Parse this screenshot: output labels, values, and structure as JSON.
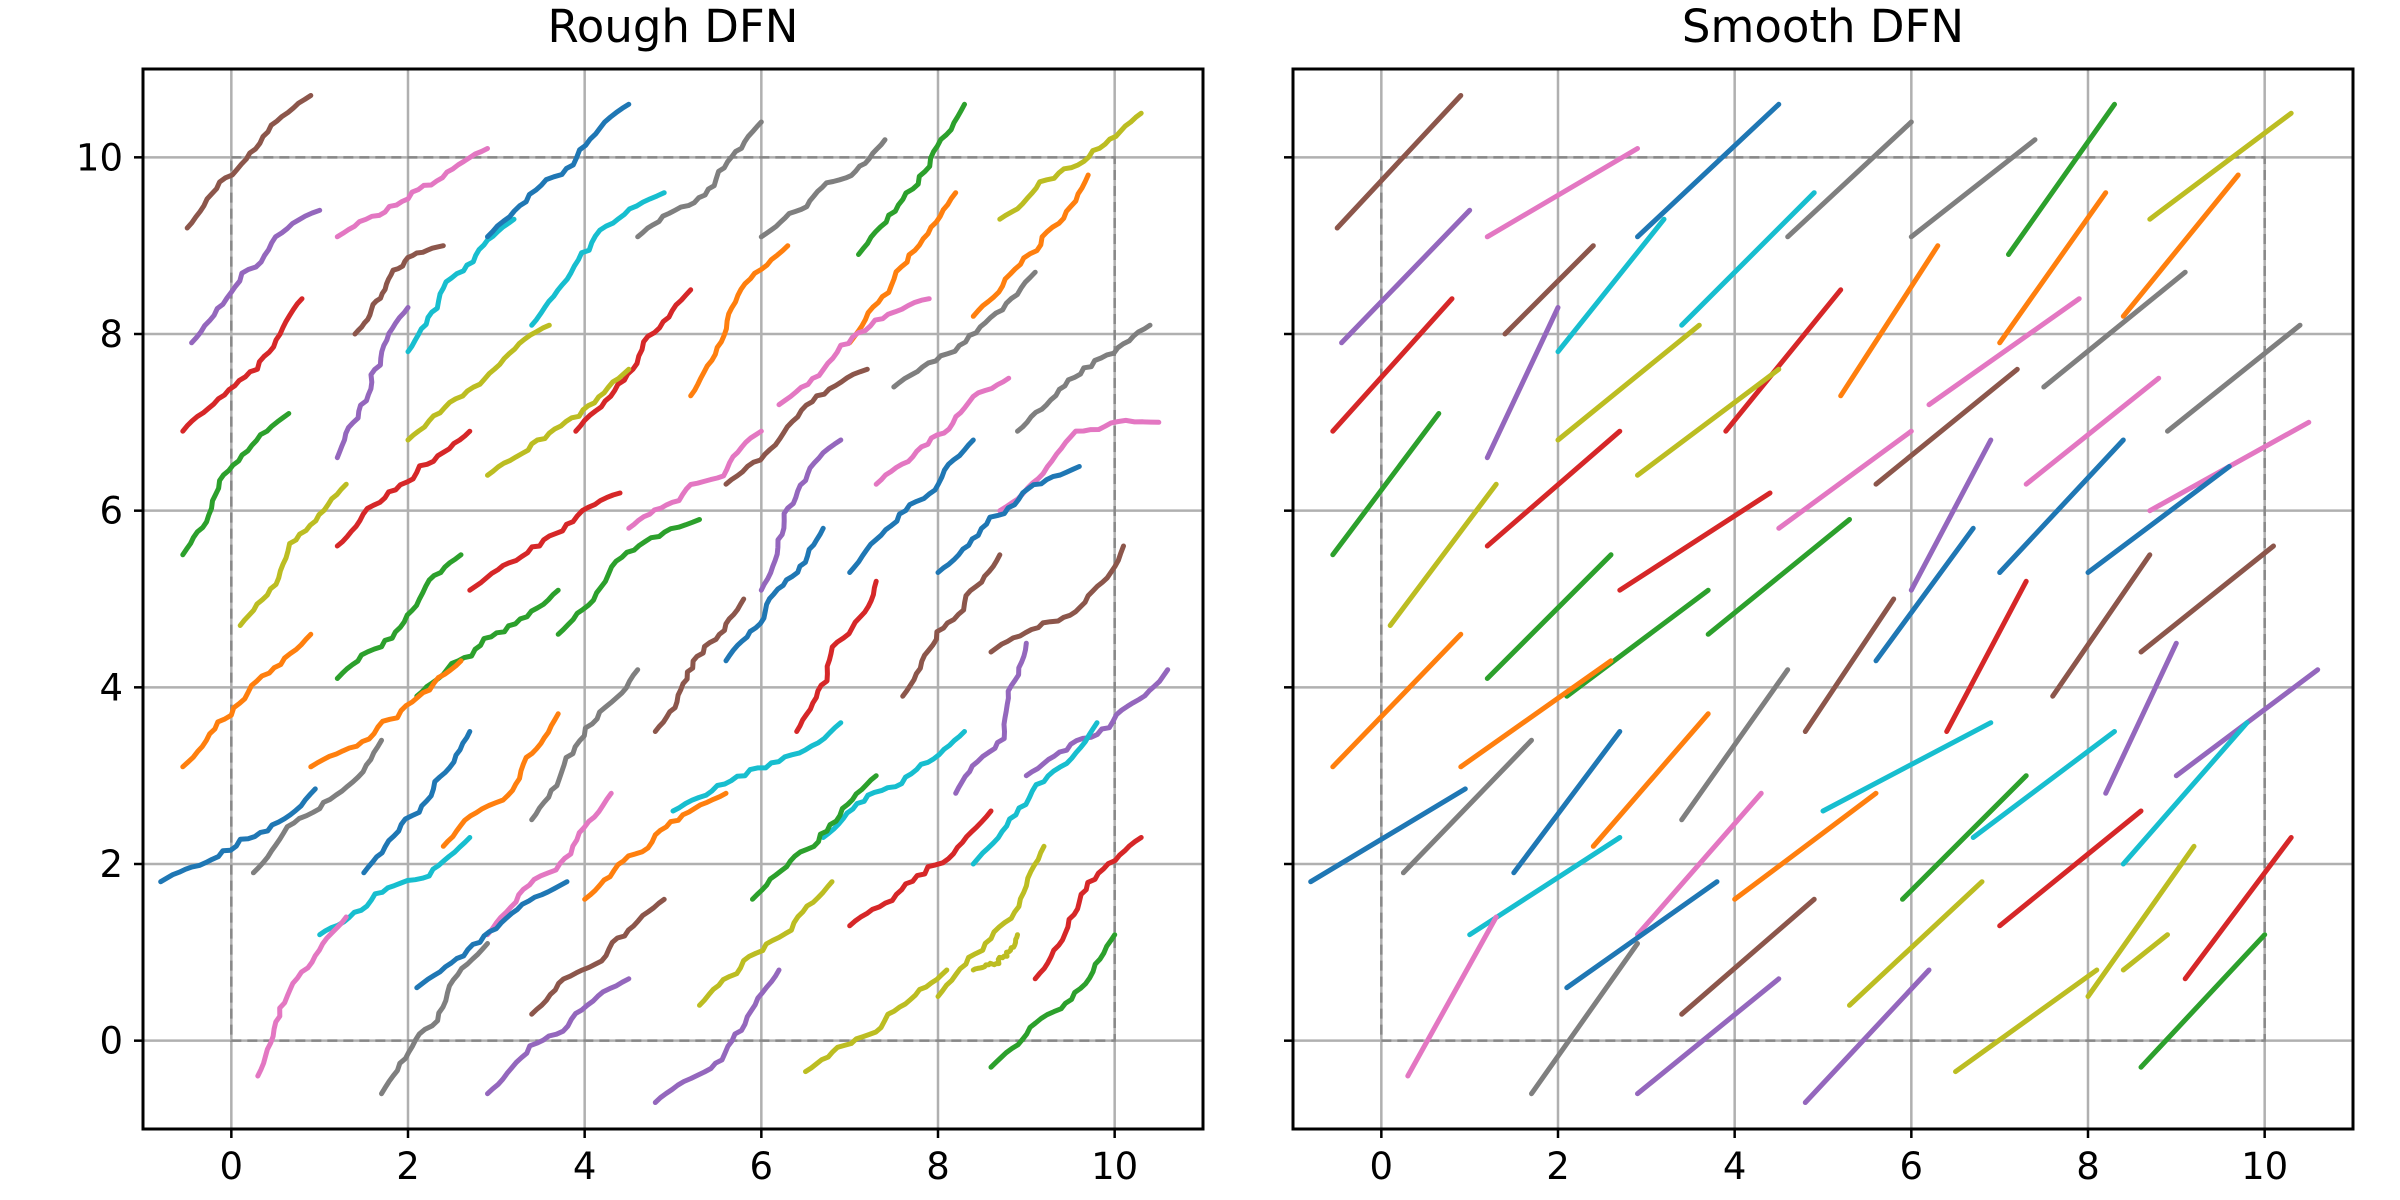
{
  "chart_data": [
    {
      "type": "line",
      "title": "Rough DFN",
      "xlabel": "",
      "ylabel": "",
      "xlim": [
        -1,
        11
      ],
      "ylim": [
        -1,
        11
      ],
      "xticks": [
        0,
        2,
        4,
        6,
        8,
        10
      ],
      "yticks": [
        0,
        2,
        4,
        6,
        8,
        10
      ],
      "grid": true,
      "domain_box": [
        0,
        0,
        10,
        10
      ],
      "roughness": "rough"
    },
    {
      "type": "line",
      "title": "Smooth DFN",
      "xlabel": "",
      "ylabel": "",
      "xlim": [
        -1,
        11
      ],
      "ylim": [
        -1,
        11
      ],
      "xticks": [
        0,
        2,
        4,
        6,
        8,
        10
      ],
      "yticks": [],
      "grid": true,
      "domain_box": [
        0,
        0,
        10,
        10
      ],
      "roughness": "smooth"
    }
  ],
  "fractures": [
    {
      "x1": -0.5,
      "y1": 9.2,
      "x2": 0.9,
      "y2": 10.7,
      "color": "#8c564b"
    },
    {
      "x1": -0.45,
      "y1": 7.9,
      "x2": 1.0,
      "y2": 9.4,
      "color": "#9467bd"
    },
    {
      "x1": 1.2,
      "y1": 9.1,
      "x2": 2.9,
      "y2": 10.1,
      "color": "#e377c2"
    },
    {
      "x1": 1.4,
      "y1": 8.0,
      "x2": 2.4,
      "y2": 9.0,
      "color": "#8c564b"
    },
    {
      "x1": -0.55,
      "y1": 6.9,
      "x2": 0.8,
      "y2": 8.4,
      "color": "#d62728"
    },
    {
      "x1": 2.0,
      "y1": 7.8,
      "x2": 3.2,
      "y2": 9.3,
      "color": "#17becf"
    },
    {
      "x1": 2.9,
      "y1": 9.1,
      "x2": 4.5,
      "y2": 10.6,
      "color": "#1f77b4"
    },
    {
      "x1": 1.2,
      "y1": 6.6,
      "x2": 2.0,
      "y2": 8.3,
      "color": "#9467bd"
    },
    {
      "x1": -0.55,
      "y1": 5.5,
      "x2": 0.65,
      "y2": 7.1,
      "color": "#2ca02c"
    },
    {
      "x1": 2.0,
      "y1": 6.8,
      "x2": 3.6,
      "y2": 8.1,
      "color": "#bcbd22"
    },
    {
      "x1": 3.4,
      "y1": 8.1,
      "x2": 4.9,
      "y2": 9.6,
      "color": "#17becf"
    },
    {
      "x1": 4.6,
      "y1": 9.1,
      "x2": 6.0,
      "y2": 10.4,
      "color": "#7f7f7f"
    },
    {
      "x1": 6.0,
      "y1": 9.1,
      "x2": 7.4,
      "y2": 10.2,
      "color": "#7f7f7f"
    },
    {
      "x1": 7.1,
      "y1": 8.9,
      "x2": 8.3,
      "y2": 10.6,
      "color": "#2ca02c"
    },
    {
      "x1": 8.7,
      "y1": 9.3,
      "x2": 10.3,
      "y2": 10.5,
      "color": "#bcbd22"
    },
    {
      "x1": 5.2,
      "y1": 7.3,
      "x2": 6.3,
      "y2": 9.0,
      "color": "#ff7f0e"
    },
    {
      "x1": 3.9,
      "y1": 6.9,
      "x2": 5.2,
      "y2": 8.5,
      "color": "#d62728"
    },
    {
      "x1": 7.0,
      "y1": 7.9,
      "x2": 8.2,
      "y2": 9.6,
      "color": "#ff7f0e"
    },
    {
      "x1": 8.4,
      "y1": 8.2,
      "x2": 9.7,
      "y2": 9.8,
      "color": "#ff7f0e"
    },
    {
      "x1": 0.1,
      "y1": 4.7,
      "x2": 1.3,
      "y2": 6.3,
      "color": "#bcbd22"
    },
    {
      "x1": 1.2,
      "y1": 5.6,
      "x2": 2.7,
      "y2": 6.9,
      "color": "#d62728"
    },
    {
      "x1": 2.9,
      "y1": 6.4,
      "x2": 4.5,
      "y2": 7.6,
      "color": "#bcbd22"
    },
    {
      "x1": 6.2,
      "y1": 7.2,
      "x2": 7.9,
      "y2": 8.4,
      "color": "#e377c2"
    },
    {
      "x1": 7.5,
      "y1": 7.4,
      "x2": 9.1,
      "y2": 8.7,
      "color": "#7f7f7f"
    },
    {
      "x1": 5.6,
      "y1": 6.3,
      "x2": 7.2,
      "y2": 7.6,
      "color": "#8c564b"
    },
    {
      "x1": 8.9,
      "y1": 6.9,
      "x2": 10.4,
      "y2": 8.1,
      "color": "#7f7f7f"
    },
    {
      "x1": 4.5,
      "y1": 5.8,
      "x2": 6.0,
      "y2": 6.9,
      "color": "#e377c2"
    },
    {
      "x1": 2.7,
      "y1": 5.1,
      "x2": 4.4,
      "y2": 6.2,
      "color": "#d62728"
    },
    {
      "x1": 1.2,
      "y1": 4.1,
      "x2": 2.6,
      "y2": 5.5,
      "color": "#2ca02c"
    },
    {
      "x1": 6.0,
      "y1": 5.1,
      "x2": 6.9,
      "y2": 6.8,
      "color": "#9467bd"
    },
    {
      "x1": 7.3,
      "y1": 6.3,
      "x2": 8.8,
      "y2": 7.5,
      "color": "#e377c2"
    },
    {
      "x1": 8.7,
      "y1": 6.0,
      "x2": 10.5,
      "y2": 7.0,
      "color": "#e377c2"
    },
    {
      "x1": 7.0,
      "y1": 5.3,
      "x2": 8.4,
      "y2": 6.8,
      "color": "#1f77b4"
    },
    {
      "x1": 5.6,
      "y1": 4.3,
      "x2": 6.7,
      "y2": 5.8,
      "color": "#1f77b4"
    },
    {
      "x1": 8.0,
      "y1": 5.3,
      "x2": 9.6,
      "y2": 6.5,
      "color": "#1f77b4"
    },
    {
      "x1": 2.1,
      "y1": 3.9,
      "x2": 3.7,
      "y2": 5.1,
      "color": "#2ca02c"
    },
    {
      "x1": 3.7,
      "y1": 4.6,
      "x2": 5.3,
      "y2": 5.9,
      "color": "#2ca02c"
    },
    {
      "x1": -0.55,
      "y1": 3.1,
      "x2": 0.9,
      "y2": 4.6,
      "color": "#ff7f0e"
    },
    {
      "x1": 0.9,
      "y1": 3.1,
      "x2": 2.6,
      "y2": 4.3,
      "color": "#ff7f0e"
    },
    {
      "x1": 4.8,
      "y1": 3.5,
      "x2": 5.8,
      "y2": 5.0,
      "color": "#8c564b"
    },
    {
      "x1": 6.4,
      "y1": 3.5,
      "x2": 7.3,
      "y2": 5.2,
      "color": "#d62728"
    },
    {
      "x1": 7.6,
      "y1": 3.9,
      "x2": 8.7,
      "y2": 5.5,
      "color": "#8c564b"
    },
    {
      "x1": 8.6,
      "y1": 4.4,
      "x2": 10.1,
      "y2": 5.6,
      "color": "#8c564b"
    },
    {
      "x1": 8.2,
      "y1": 2.8,
      "x2": 9.0,
      "y2": 4.5,
      "color": "#9467bd"
    },
    {
      "x1": 9.0,
      "y1": 3.0,
      "x2": 10.6,
      "y2": 4.2,
      "color": "#9467bd"
    },
    {
      "x1": 3.4,
      "y1": 2.5,
      "x2": 4.6,
      "y2": 4.2,
      "color": "#7f7f7f"
    },
    {
      "x1": 0.25,
      "y1": 1.9,
      "x2": 1.7,
      "y2": 3.4,
      "color": "#7f7f7f"
    },
    {
      "x1": -0.8,
      "y1": 1.8,
      "x2": 0.95,
      "y2": 2.85,
      "color": "#1f77b4"
    },
    {
      "x1": 1.5,
      "y1": 1.9,
      "x2": 2.7,
      "y2": 3.5,
      "color": "#1f77b4"
    },
    {
      "x1": 2.4,
      "y1": 2.2,
      "x2": 3.7,
      "y2": 3.7,
      "color": "#ff7f0e"
    },
    {
      "x1": 5.0,
      "y1": 2.6,
      "x2": 6.9,
      "y2": 3.6,
      "color": "#17becf"
    },
    {
      "x1": 6.7,
      "y1": 2.3,
      "x2": 8.3,
      "y2": 3.5,
      "color": "#17becf"
    },
    {
      "x1": 8.4,
      "y1": 2.0,
      "x2": 9.8,
      "y2": 3.6,
      "color": "#17becf"
    },
    {
      "x1": 5.9,
      "y1": 1.6,
      "x2": 7.3,
      "y2": 3.0,
      "color": "#2ca02c"
    },
    {
      "x1": 1.0,
      "y1": 1.2,
      "x2": 2.7,
      "y2": 2.3,
      "color": "#17becf"
    },
    {
      "x1": 2.9,
      "y1": 1.2,
      "x2": 4.3,
      "y2": 2.8,
      "color": "#e377c2"
    },
    {
      "x1": 4.0,
      "y1": 1.6,
      "x2": 5.6,
      "y2": 2.8,
      "color": "#ff7f0e"
    },
    {
      "x1": 2.1,
      "y1": 0.6,
      "x2": 3.8,
      "y2": 1.8,
      "color": "#1f77b4"
    },
    {
      "x1": 3.4,
      "y1": 0.3,
      "x2": 4.9,
      "y2": 1.6,
      "color": "#8c564b"
    },
    {
      "x1": 7.0,
      "y1": 1.3,
      "x2": 8.6,
      "y2": 2.6,
      "color": "#d62728"
    },
    {
      "x1": 5.3,
      "y1": 0.4,
      "x2": 6.8,
      "y2": 1.8,
      "color": "#bcbd22"
    },
    {
      "x1": 0.3,
      "y1": -0.4,
      "x2": 1.3,
      "y2": 1.4,
      "color": "#e377c2"
    },
    {
      "x1": 1.7,
      "y1": -0.6,
      "x2": 2.9,
      "y2": 1.1,
      "color": "#7f7f7f"
    },
    {
      "x1": 2.9,
      "y1": -0.6,
      "x2": 4.5,
      "y2": 0.7,
      "color": "#9467bd"
    },
    {
      "x1": 4.8,
      "y1": -0.7,
      "x2": 6.2,
      "y2": 0.8,
      "color": "#9467bd"
    },
    {
      "x1": 6.5,
      "y1": -0.35,
      "x2": 8.1,
      "y2": 0.8,
      "color": "#bcbd22"
    },
    {
      "x1": 8.0,
      "y1": 0.5,
      "x2": 9.2,
      "y2": 2.2,
      "color": "#bcbd22"
    },
    {
      "x1": 8.6,
      "y1": -0.3,
      "x2": 10.0,
      "y2": 1.2,
      "color": "#2ca02c"
    },
    {
      "x1": 9.1,
      "y1": 0.7,
      "x2": 10.3,
      "y2": 2.3,
      "color": "#d62728"
    },
    {
      "x1": 8.4,
      "y1": 0.8,
      "x2": 8.9,
      "y2": 1.2,
      "color": "#bcbd22"
    }
  ]
}
